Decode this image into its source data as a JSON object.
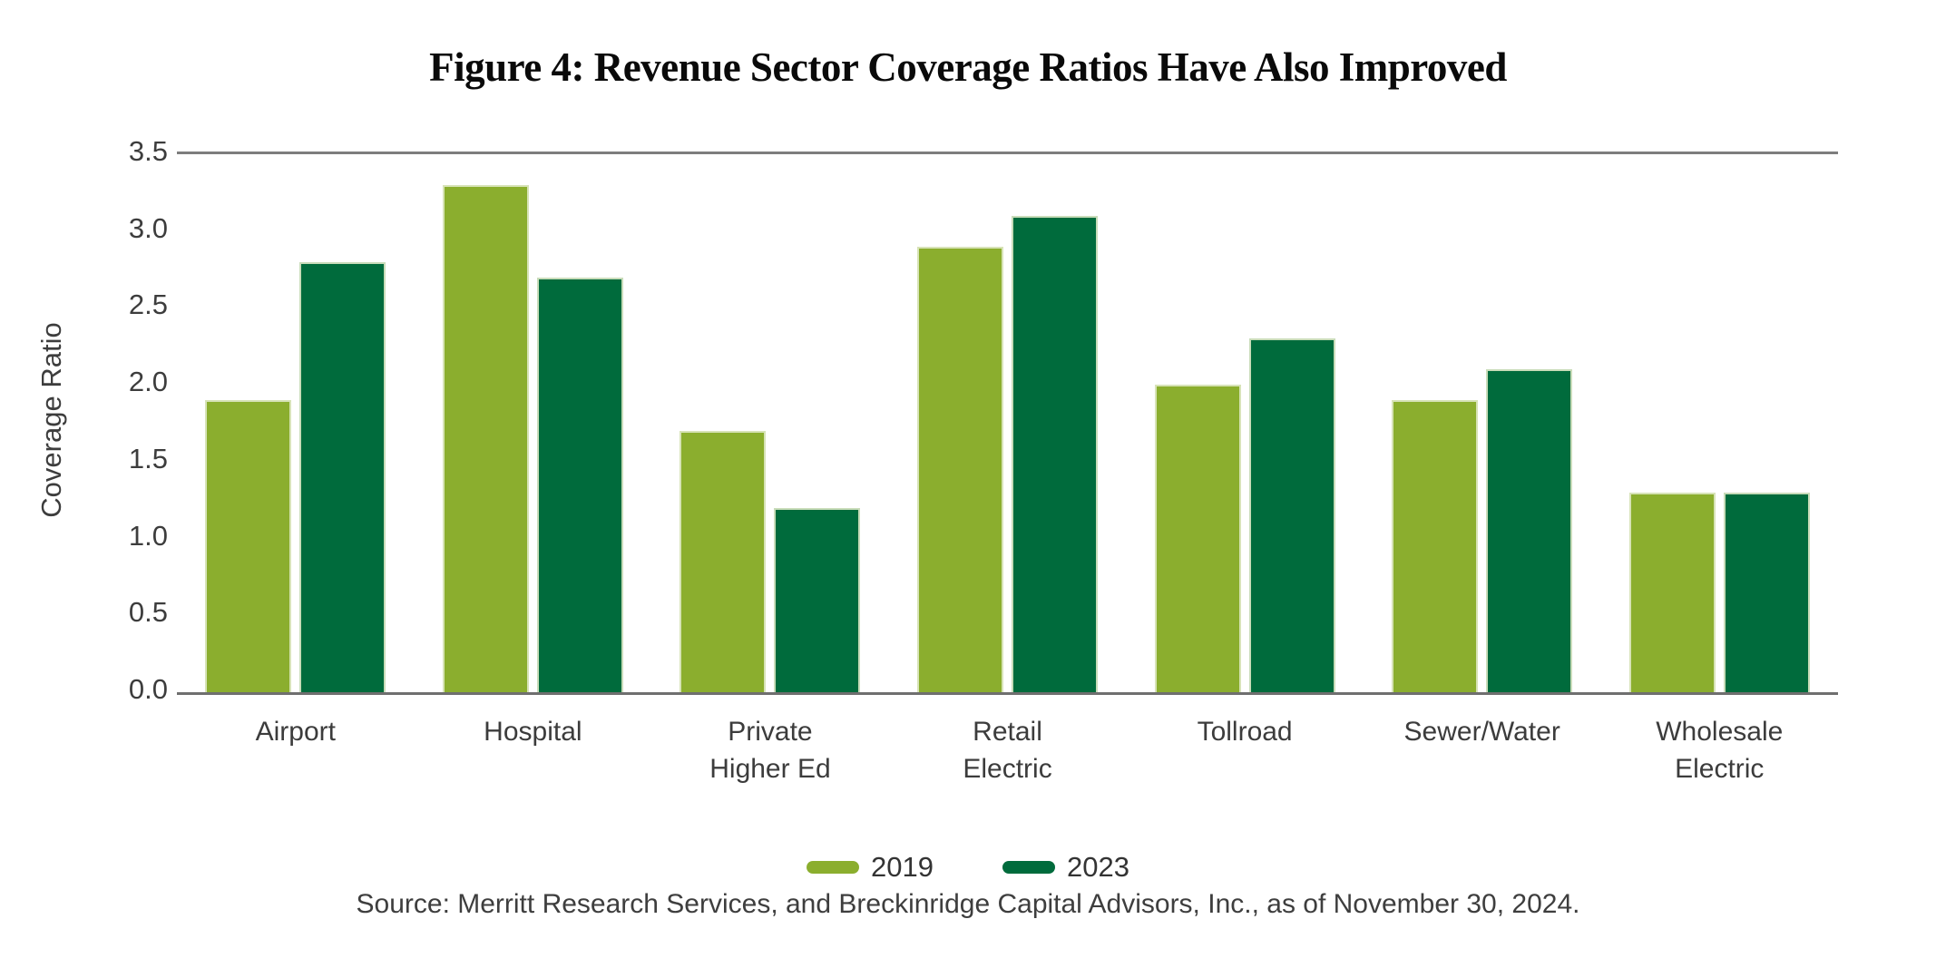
{
  "title": "Figure 4: Revenue Sector Coverage Ratios Have Also Improved",
  "source": "Source: Merritt Research Services, and Breckinridge Capital Advisors, Inc., as of November 30, 2024.",
  "colors": {
    "series_2019": "#8bae2e",
    "series_2023": "#006b3c",
    "axis_line": "#7d7d7d",
    "text": "#3d3d3d",
    "title_text": "#0a0a0a"
  },
  "chart_data": {
    "type": "bar",
    "title": "Figure 4: Revenue Sector Coverage Ratios Have Also Improved",
    "xlabel": "",
    "ylabel": "Coverage Ratio",
    "ylim": [
      0,
      3.5
    ],
    "ytick_labels": [
      "3.5",
      "3.0",
      "2.5",
      "2.0",
      "1.5",
      "1.0",
      "0.5",
      "0.0"
    ],
    "grid": false,
    "legend_position": "bottom",
    "categories": [
      "Airport",
      "Hospital",
      "Private Higher Ed",
      "Retail Electric",
      "Tollroad",
      "Sewer/Water",
      "Wholesale Electric"
    ],
    "category_label_lines": [
      [
        "Airport"
      ],
      [
        "Hospital"
      ],
      [
        "Private",
        "Higher Ed"
      ],
      [
        "Retail",
        "Electric"
      ],
      [
        "Tollroad"
      ],
      [
        "Sewer/Water"
      ],
      [
        "Wholesale",
        "Electric"
      ]
    ],
    "series": [
      {
        "name": "2019",
        "color": "#8bae2e",
        "values": [
          1.9,
          3.3,
          1.7,
          2.9,
          2.0,
          1.9,
          1.3
        ]
      },
      {
        "name": "2023",
        "color": "#006b3c",
        "values": [
          2.8,
          2.7,
          1.2,
          3.1,
          2.3,
          2.1,
          1.3
        ]
      }
    ]
  }
}
